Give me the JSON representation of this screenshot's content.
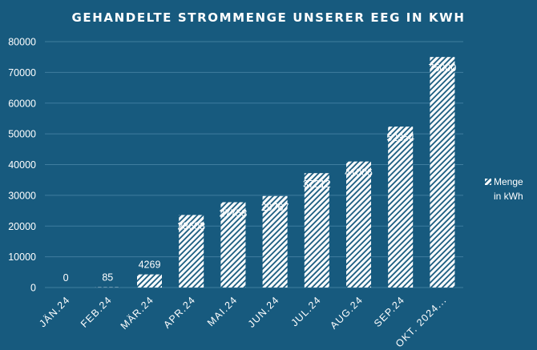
{
  "chart_data": {
    "type": "bar",
    "title": "GEHANDELTE STROMMENGE UNSERER EEG IN KWH",
    "categories": [
      "JÄN.24",
      "FEB.24",
      "MÄR.24",
      "APR.24",
      "MAI.24",
      "JUN.24",
      "JUL.24",
      "AUG.24",
      "SEP.24",
      "OKT. 2024..."
    ],
    "series": [
      {
        "name": "Menge in kWh",
        "values": [
          0,
          85,
          4269,
          23603,
          27753,
          29767,
          37212,
          41006,
          52354,
          75000
        ]
      }
    ],
    "ylim": [
      0,
      80000
    ],
    "yticks": [
      0,
      10000,
      20000,
      30000,
      40000,
      50000,
      60000,
      70000,
      80000
    ],
    "grid": true,
    "legend_position": "right",
    "legend_lines": [
      "Menge",
      "in kWh"
    ],
    "colors": {
      "background": "#175a7e",
      "bar": "#ffffff",
      "grid": "#3f7d9f",
      "text": "#ffffff"
    }
  }
}
